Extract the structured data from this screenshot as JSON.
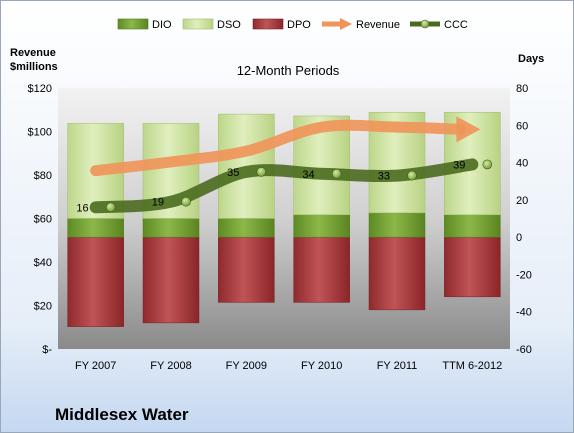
{
  "chart_data": {
    "type": "bar",
    "subtitle": "12-Month Periods",
    "company": "Middlesex Water",
    "left_axis_label_line1": "Revenue",
    "left_axis_label_line2": "$millions",
    "right_axis_label": "Days",
    "categories": [
      "FY 2007",
      "FY 2008",
      "FY 2009",
      "FY 2010",
      "FY 2011",
      "TTM 6-2012"
    ],
    "left_axis": {
      "range": [
        0,
        120
      ],
      "ticks": [
        "$-",
        "$20",
        "$40",
        "$60",
        "$80",
        "$100",
        "$120"
      ]
    },
    "right_axis": {
      "range": [
        -60,
        80
      ],
      "ticks": [
        "-60",
        "-40",
        "-20",
        "0",
        "20",
        "40",
        "60",
        "80"
      ]
    },
    "legend": [
      {
        "name": "DIO",
        "color": "#6f9a2e"
      },
      {
        "name": "DSO",
        "color": "#cfe3a3"
      },
      {
        "name": "DPO",
        "color": "#a8383a"
      },
      {
        "name": "Revenue",
        "color": "#f0955a"
      },
      {
        "name": "CCC",
        "color": "#4a6b1f"
      }
    ],
    "series": [
      {
        "name": "DIO",
        "axis": "right",
        "values": [
          10,
          10,
          10,
          12,
          13,
          12
        ]
      },
      {
        "name": "DSO",
        "axis": "right",
        "values": [
          51,
          51,
          56,
          53,
          54,
          55
        ]
      },
      {
        "name": "DPO",
        "axis": "right",
        "values": [
          -48,
          -46,
          -35,
          -35,
          -39,
          -32
        ]
      },
      {
        "name": "Revenue",
        "axis": "left",
        "values": [
          82,
          86,
          91,
          102,
          102,
          101
        ]
      },
      {
        "name": "CCC",
        "axis": "right",
        "values": [
          16,
          19,
          35,
          34,
          33,
          39
        ]
      }
    ],
    "ccc_labels": [
      "16",
      "19",
      "35",
      "34",
      "33",
      "39"
    ],
    "grid": false,
    "legend_position": "top"
  }
}
